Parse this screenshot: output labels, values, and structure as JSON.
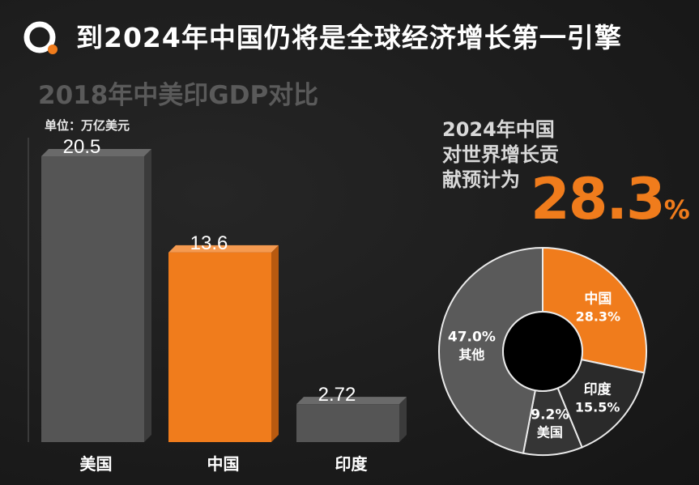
{
  "header": {
    "title": "到2024年中国仍将是全球经济增长第一引擎"
  },
  "left_chart": {
    "title": "2018年中美印GDP对比",
    "unit": "单位：万亿美元"
  },
  "right_panel": {
    "line1": "2024年中国",
    "line2": "对世界增长贡",
    "line3": "献预计为",
    "big_value": "28.3",
    "big_unit": "%"
  },
  "colors": {
    "orange": "#f07c1c",
    "gray": "#555555",
    "dark": "#2a2a2a",
    "background": "#1c1c1c"
  },
  "chart_data": [
    {
      "type": "bar",
      "title": "2018年中美印GDP对比",
      "ylabel": "单位：万亿美元",
      "categories": [
        "美国",
        "中国",
        "印度"
      ],
      "values": [
        20.5,
        13.6,
        2.72
      ],
      "value_labels": [
        "20.5",
        "13.6",
        "2.72"
      ],
      "highlight": "中国",
      "ylim": [
        0,
        22
      ]
    },
    {
      "type": "pie",
      "style": "donut",
      "slices": [
        {
          "name": "中国",
          "value": 28.3,
          "label": "28.3%",
          "color": "#f07c1c"
        },
        {
          "name": "印度",
          "value": 15.5,
          "label": "15.5%",
          "color": "#2a2a2a"
        },
        {
          "name": "美国",
          "value": 9.2,
          "label": "9.2%",
          "color": "#353535"
        },
        {
          "name": "其他",
          "value": 47.0,
          "label": "47.0%",
          "color": "#5a5a5a"
        }
      ]
    }
  ]
}
